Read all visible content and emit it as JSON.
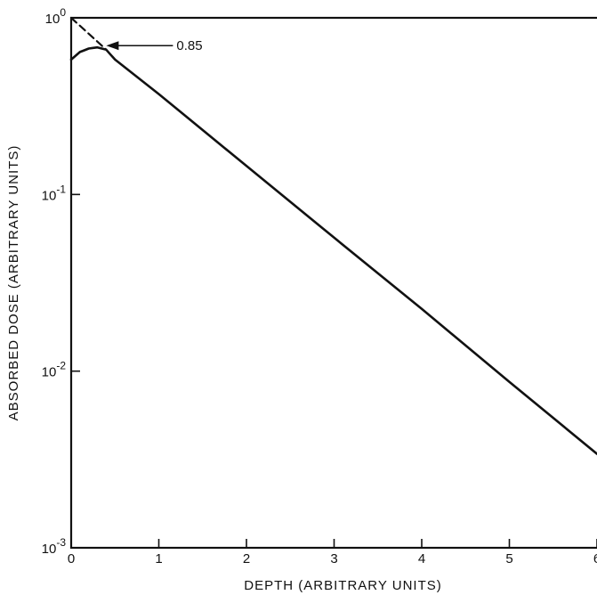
{
  "chart_data": {
    "type": "line",
    "title": "",
    "xlabel": "DEPTH (ARBITRARY UNITS)",
    "ylabel": "ABSORBED DOSE (ARBITRARY UNITS)",
    "xlim": [
      0,
      6
    ],
    "ylim": [
      0.001,
      1
    ],
    "yscale": "log",
    "grid": false,
    "x_ticks": [
      0,
      1,
      2,
      3,
      4,
      5,
      6
    ],
    "x_tick_labels": [
      "0",
      "1",
      "2",
      "3",
      "4",
      "5",
      "6"
    ],
    "y_ticks": [
      0.001,
      0.01,
      0.1,
      1
    ],
    "y_tick_labels": [
      {
        "base": "10",
        "exp": "-3"
      },
      {
        "base": "10",
        "exp": "-2"
      },
      {
        "base": "10",
        "exp": "-1"
      },
      {
        "base": "10",
        "exp": "0"
      }
    ],
    "series": [
      {
        "style": "solid",
        "x": [
          0,
          0.1,
          0.2,
          0.3,
          0.4,
          0.5,
          1,
          2,
          3,
          4,
          5,
          6
        ],
        "y": [
          0.58,
          0.64,
          0.67,
          0.68,
          0.66,
          0.58,
          0.37,
          0.145,
          0.057,
          0.0225,
          0.0087,
          0.0034
        ]
      },
      {
        "style": "dashed",
        "x": [
          0,
          0.4
        ],
        "y": [
          1.0,
          0.66
        ]
      }
    ],
    "annotations": [
      {
        "text": "0.85",
        "arrow_to": {
          "x": 0.4,
          "y": 0.68
        }
      }
    ]
  }
}
